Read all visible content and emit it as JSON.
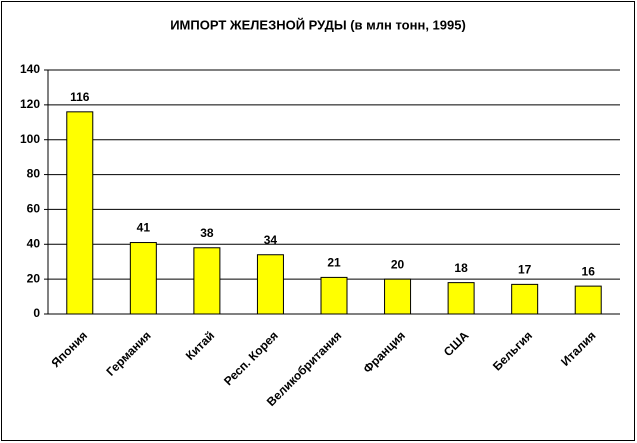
{
  "chart_data": {
    "type": "bar",
    "title": "ИМПОРТ ЖЕЛЕЗНОЙ РУДЫ (в млн тонн, 1995)",
    "categories": [
      "Япония",
      "Германия",
      "Китай",
      "Респ. Корея",
      "Великобритания",
      "Франция",
      "США",
      "Бельгия",
      "Италия"
    ],
    "values": [
      116,
      41,
      38,
      34,
      21,
      20,
      18,
      17,
      16
    ],
    "color": "#ffff00",
    "ylim": [
      0,
      140
    ],
    "yticks": [
      0,
      20,
      40,
      60,
      80,
      100,
      120,
      140
    ],
    "grid": true
  }
}
